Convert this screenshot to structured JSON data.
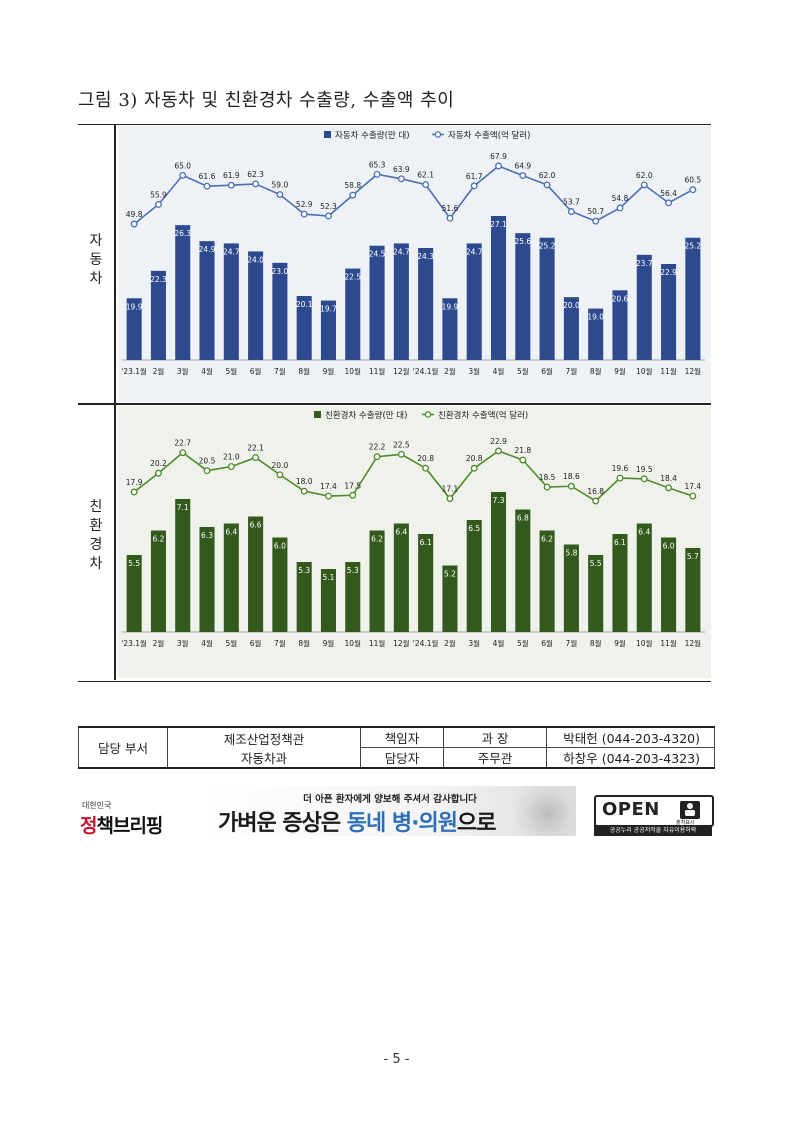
{
  "document": {
    "figure_title": "그림 3) 자동차 및 친환경차 수출량, 수출액 추이",
    "row_labels": {
      "auto": "자\n동\n차",
      "eco": "친\n환\n경\n차"
    },
    "page_number": "- 5 -"
  },
  "chart_data": [
    {
      "type": "bar",
      "categories": [
        "'23.1월",
        "2월",
        "3월",
        "4월",
        "5월",
        "6월",
        "7월",
        "8월",
        "9월",
        "10월",
        "11월",
        "12월",
        "'24.1월",
        "2월",
        "3월",
        "4월",
        "5월",
        "6월",
        "7월",
        "8월",
        "9월",
        "10월",
        "11월",
        "12월"
      ],
      "series": [
        {
          "name": "자동차 수출량(만 대)",
          "type": "bar",
          "color": "#2e4a8f",
          "values": [
            19.9,
            22.3,
            26.3,
            24.9,
            24.7,
            24.0,
            23.0,
            20.1,
            19.7,
            22.5,
            24.5,
            24.7,
            24.3,
            19.9,
            24.7,
            27.1,
            25.6,
            25.2,
            20.0,
            19.0,
            20.6,
            23.7,
            22.9,
            25.2
          ]
        },
        {
          "name": "자동차 수출액(억 달러)",
          "type": "line",
          "color": "#4a6fb5",
          "values": [
            49.8,
            55.9,
            65.0,
            61.6,
            61.9,
            62.3,
            59.0,
            52.9,
            52.3,
            58.8,
            65.3,
            63.9,
            62.1,
            51.6,
            61.7,
            67.9,
            64.9,
            62.0,
            53.7,
            50.7,
            54.8,
            62.0,
            56.4,
            60.5
          ]
        }
      ],
      "legend": "top-center",
      "bar_color": "#2e4a8f",
      "line_color": "#4a6fb5",
      "background": "#eef1f5"
    },
    {
      "type": "bar",
      "categories": [
        "'23.1월",
        "2월",
        "3월",
        "4월",
        "5월",
        "6월",
        "7월",
        "8월",
        "9월",
        "10월",
        "11월",
        "12월",
        "'24.1월",
        "2월",
        "3월",
        "4월",
        "5월",
        "6월",
        "7월",
        "8월",
        "9월",
        "10월",
        "11월",
        "12월"
      ],
      "series": [
        {
          "name": "친환경차 수출량(만 대)",
          "type": "bar",
          "color": "#33591d",
          "values": [
            5.5,
            6.2,
            7.1,
            6.3,
            6.4,
            6.6,
            6.0,
            5.3,
            5.1,
            5.3,
            6.2,
            6.4,
            6.1,
            5.2,
            6.5,
            7.3,
            6.8,
            6.2,
            5.8,
            5.5,
            6.1,
            6.4,
            6.0,
            5.7
          ]
        },
        {
          "name": "친환경차 수출액(억 달러)",
          "type": "line",
          "color": "#4f8a2a",
          "values": [
            17.9,
            20.2,
            22.7,
            20.5,
            21.0,
            22.1,
            20.0,
            18.0,
            17.4,
            17.5,
            22.2,
            22.5,
            20.8,
            17.1,
            20.8,
            22.9,
            21.8,
            18.5,
            18.6,
            16.8,
            19.6,
            19.5,
            18.4,
            17.4
          ]
        }
      ],
      "legend": "top-center",
      "bar_color": "#33591d",
      "line_color": "#4f8a2a",
      "background": "#eef2ea"
    }
  ],
  "contact": {
    "dept_header": "담당 부서",
    "dept_line1": "제조산업정책관",
    "dept_line2": "자동차과",
    "row1": {
      "role": "책임자",
      "rank": "과  장",
      "contact": "박태헌 (044-203-4320)"
    },
    "row2": {
      "role": "담당자",
      "rank": "주무관",
      "contact": "하창우 (044-203-4323)"
    }
  },
  "footer": {
    "logo_small": "대한민국",
    "logo_red": "정",
    "logo_rest": "책브리핑",
    "banner_top": "더 아픈 환자에게 양보해 주셔서 감사합니다",
    "banner_main_a": "가벼운 증상은 ",
    "banner_main_b": "동네 병·의원",
    "banner_main_c": "으로",
    "open_text": "OPEN",
    "open_icon_label": "출처표시",
    "open_sub": "공공누리 공공저작물 자유이용허락"
  }
}
